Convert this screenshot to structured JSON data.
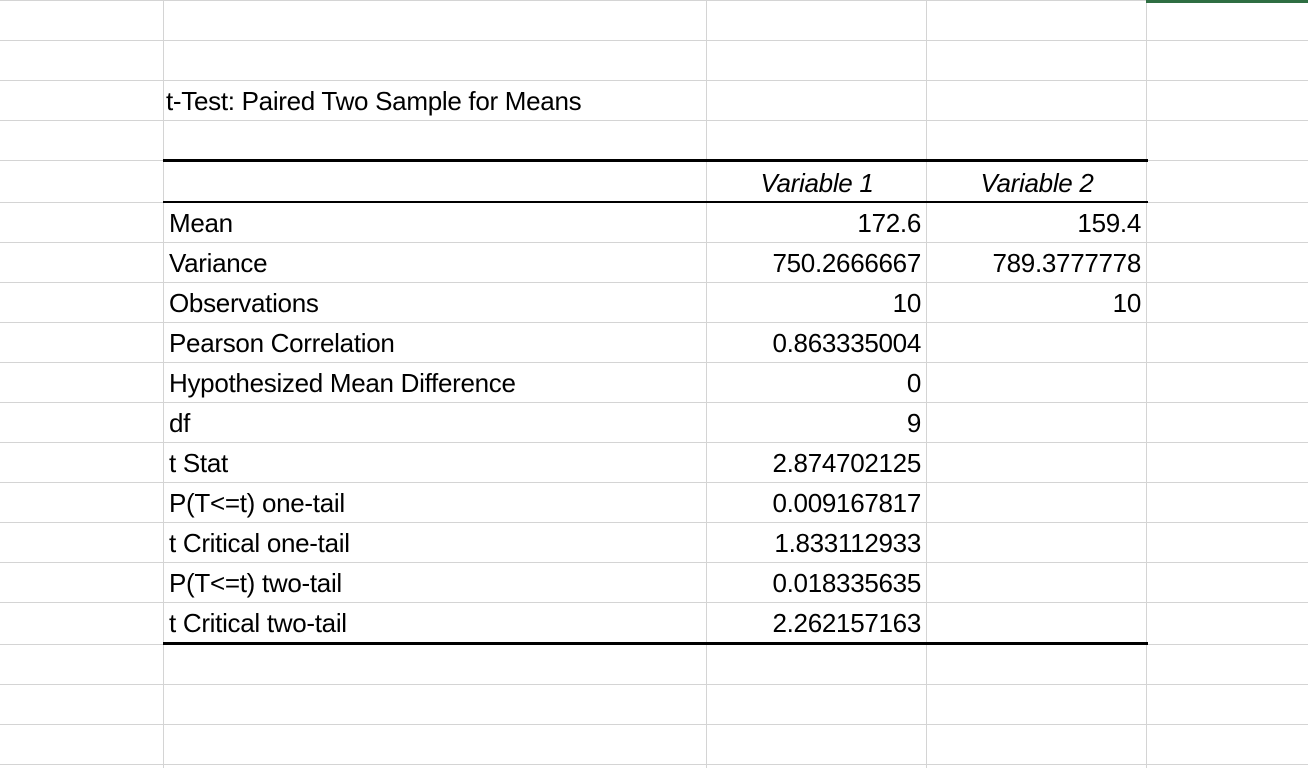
{
  "sheet": {
    "accent_color": "#2e6e42",
    "title": "t-Test: Paired Two Sample for Means",
    "headers": {
      "var1": "Variable 1",
      "var2": "Variable 2"
    },
    "rows": [
      {
        "label": "Mean",
        "v1": "172.6",
        "v2": "159.4"
      },
      {
        "label": "Variance",
        "v1": "750.2666667",
        "v2": "789.3777778"
      },
      {
        "label": "Observations",
        "v1": "10",
        "v2": "10"
      },
      {
        "label": "Pearson Correlation",
        "v1": "0.863335004",
        "v2": ""
      },
      {
        "label": "Hypothesized Mean Difference",
        "v1": "0",
        "v2": ""
      },
      {
        "label": "df",
        "v1": "9",
        "v2": ""
      },
      {
        "label": "t Stat",
        "v1": "2.874702125",
        "v2": ""
      },
      {
        "label": "P(T<=t) one-tail",
        "v1": "0.009167817",
        "v2": ""
      },
      {
        "label": "t Critical one-tail",
        "v1": "1.833112933",
        "v2": ""
      },
      {
        "label": "P(T<=t) two-tail",
        "v1": "0.018335635",
        "v2": ""
      },
      {
        "label": "t Critical two-tail",
        "v1": "2.262157163",
        "v2": ""
      }
    ]
  }
}
